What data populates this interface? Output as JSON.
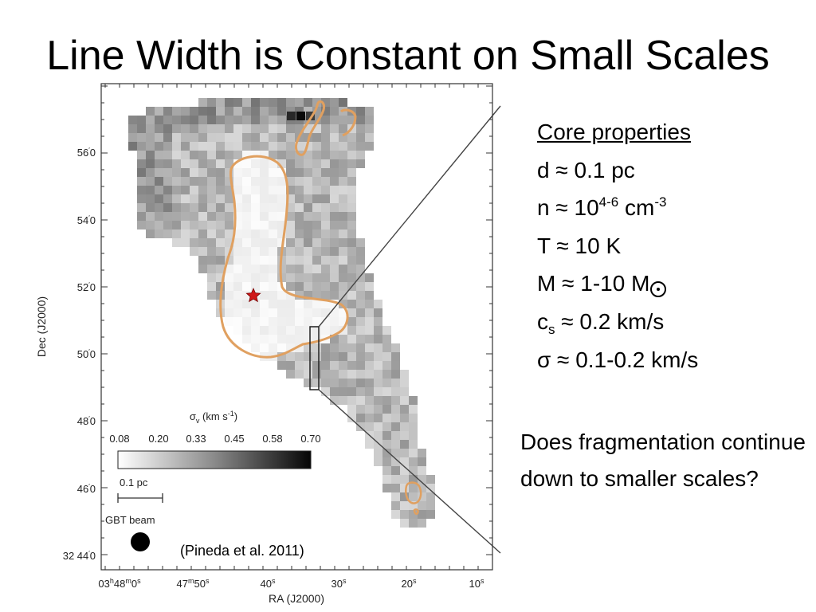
{
  "slide": {
    "title": "Line Width is Constant on Small Scales"
  },
  "figure": {
    "dec_axis_label": "Dec (J2000)",
    "ra_axis_label": "RA (J2000)",
    "dec_ticks": [
      {
        "deg": "56",
        "min": "0"
      },
      {
        "deg": "54",
        "min": "0"
      },
      {
        "deg": "52",
        "min": "0"
      },
      {
        "deg": "50",
        "min": "0"
      },
      {
        "deg": "48",
        "min": "0"
      },
      {
        "deg": "46",
        "min": "0"
      },
      {
        "deg": "32 44",
        "min": "0"
      }
    ],
    "ra_ticks": [
      {
        "main": "03",
        "s1": "h",
        "mid": "48",
        "s2": "m",
        "end": "0",
        "s3": "s"
      },
      {
        "main": "47",
        "s1": "m",
        "mid": "50",
        "s2": "s",
        "end": "",
        "s3": ""
      },
      {
        "main": "40",
        "s1": "s",
        "mid": "",
        "s2": "",
        "end": "",
        "s3": ""
      },
      {
        "main": "30",
        "s1": "s",
        "mid": "",
        "s2": "",
        "end": "",
        "s3": ""
      },
      {
        "main": "20",
        "s1": "s",
        "mid": "",
        "s2": "",
        "end": "",
        "s3": ""
      },
      {
        "main": "10",
        "s1": "s",
        "mid": "",
        "s2": "",
        "end": "",
        "s3": ""
      }
    ],
    "colorbar": {
      "label_sym": "σ",
      "label_sub": "v",
      "label_unit": " (km s",
      "label_exp": "-1",
      "label_close": ")",
      "ticks": [
        "0.08",
        "0.20",
        "0.33",
        "0.45",
        "0.58",
        "0.70"
      ]
    },
    "scalebar_label": "0.1 pc",
    "beam_label": "GBT beam",
    "citation": "(Pineda et al. 2011)"
  },
  "core_properties": {
    "heading": "Core properties",
    "d": {
      "text": "d ≈ 0.1 pc"
    },
    "n": {
      "prefix": "n ≈ 10",
      "exp": "4-6",
      "mid": " cm",
      "exp2": "-3"
    },
    "T": {
      "text": "T ≈ 10 K"
    },
    "M": {
      "text": "M ≈ 1-10 M"
    },
    "cs": {
      "sym": "c",
      "sub": "s",
      "rest": " ≈ 0.2 km/s"
    },
    "sigma": {
      "text": "σ ≈ 0.1-0.2 km/s"
    }
  },
  "question": "Does fragmentation continue down to smaller scales?",
  "colors": {
    "contour": "#e0a060",
    "contour_dark": "#b07030",
    "star": "#d01818"
  }
}
